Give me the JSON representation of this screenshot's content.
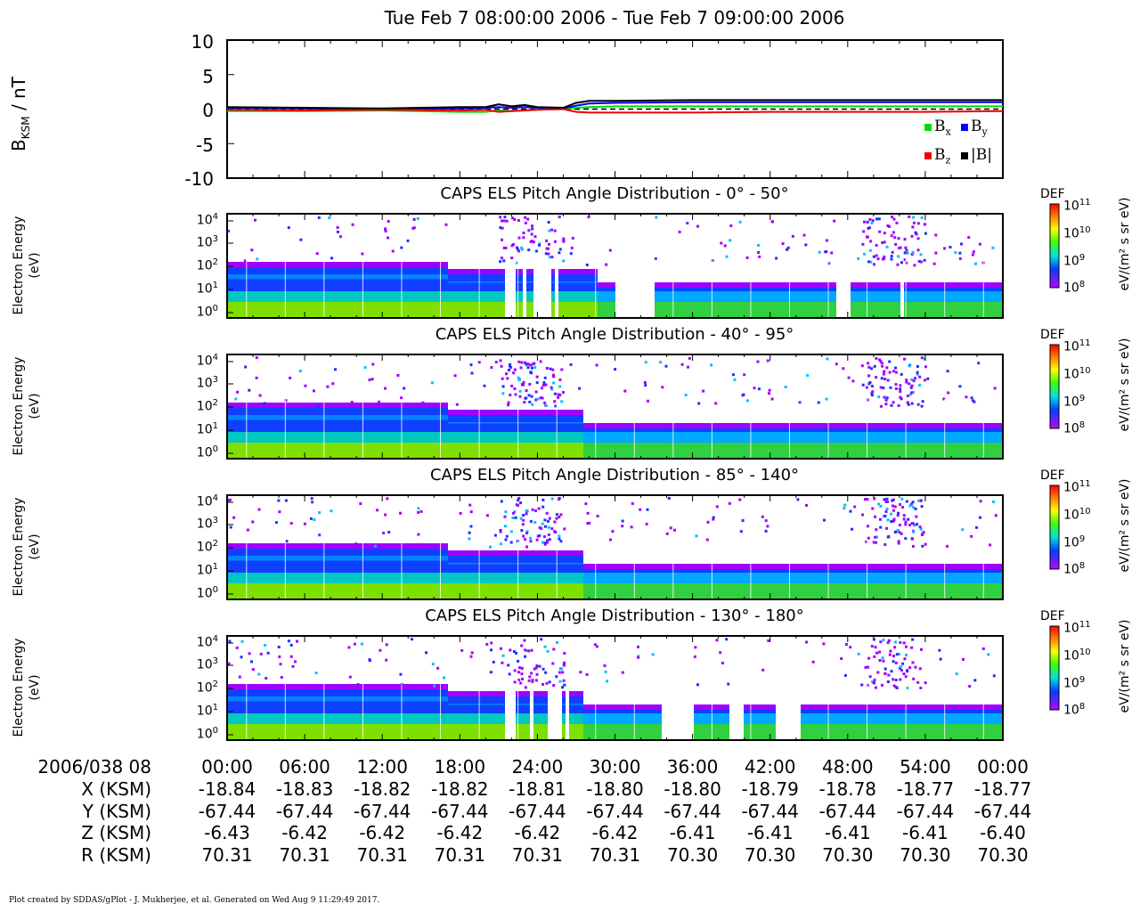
{
  "header": {
    "title": "Tue Feb  7 08:00:00 2006 - Tue Feb  7 09:00:00 2006"
  },
  "mag": {
    "ylabel_main": "B",
    "ylabel_sub": "KSM",
    "ylabel_unit": " / nT",
    "yticks": [
      "10",
      "5",
      "0",
      "-5",
      "-10"
    ],
    "legend": [
      {
        "base": "B",
        "sub": "x",
        "color": "#00dd00"
      },
      {
        "base": "B",
        "sub": "y",
        "color": "#0000ff"
      },
      {
        "base": "B",
        "sub": "z",
        "color": "#ee0000"
      },
      {
        "base": "|B|",
        "sub": "",
        "color": "#000000"
      }
    ]
  },
  "chart_data": {
    "type": "line",
    "title": "Tue Feb  7 08:00:00 2006 - Tue Feb  7 09:00:00 2006",
    "ylabel": "B KSM / nT",
    "ylim": [
      -10,
      10
    ],
    "x_minutes": [
      0,
      6,
      12,
      18,
      20,
      21,
      22,
      23,
      24,
      26,
      27,
      28,
      30,
      36,
      42,
      48,
      54,
      60
    ],
    "series": [
      {
        "name": "Bx",
        "color": "#00dd00",
        "values": [
          -0.3,
          -0.3,
          -0.2,
          -0.4,
          -0.4,
          -0.2,
          -0.3,
          -0.2,
          -0.1,
          0.0,
          0.2,
          0.3,
          0.4,
          0.4,
          0.4,
          0.4,
          0.4,
          0.4
        ]
      },
      {
        "name": "By",
        "color": "#0000ff",
        "values": [
          0.2,
          0.1,
          0.0,
          0.1,
          0.2,
          0.3,
          0.2,
          0.3,
          0.2,
          0.1,
          0.5,
          0.8,
          0.9,
          1.0,
          1.0,
          1.0,
          1.0,
          1.0
        ]
      },
      {
        "name": "Bz",
        "color": "#ee0000",
        "values": [
          -0.1,
          -0.2,
          -0.1,
          -0.2,
          -0.1,
          -0.4,
          -0.3,
          -0.2,
          -0.1,
          0.0,
          -0.4,
          -0.5,
          -0.5,
          -0.5,
          -0.4,
          -0.4,
          -0.4,
          -0.3
        ]
      },
      {
        "name": "|B|",
        "color": "#000000",
        "values": [
          0.3,
          0.2,
          0.1,
          0.3,
          0.3,
          0.7,
          0.4,
          0.6,
          0.3,
          0.2,
          0.9,
          1.2,
          1.2,
          1.3,
          1.3,
          1.3,
          1.3,
          1.3
        ]
      }
    ],
    "dashed_reference_y": 0
  },
  "spectrograms": [
    {
      "title": "CAPS ELS Pitch Angle Distribution - 0° - 50°",
      "gaps_minutes": [
        [
          21.3,
          22.3
        ],
        [
          22.7,
          23.0
        ],
        [
          23.6,
          25.0
        ],
        [
          25.3,
          25.5
        ],
        [
          30.0,
          32.8
        ],
        [
          47.0,
          48.1
        ],
        [
          52.0,
          52.3
        ]
      ]
    },
    {
      "title": "CAPS ELS Pitch Angle Distribution - 40° - 95°",
      "gaps_minutes": []
    },
    {
      "title": "CAPS ELS Pitch Angle Distribution - 85° - 140°",
      "gaps_minutes": []
    },
    {
      "title": "CAPS ELS Pitch Angle Distribution - 130° - 180°",
      "gaps_minutes": [
        [
          21.3,
          22.3
        ],
        [
          23.3,
          23.6
        ],
        [
          24.6,
          25.7
        ],
        [
          26.0,
          26.3
        ],
        [
          33.5,
          36.0
        ],
        [
          38.8,
          39.8
        ],
        [
          42.3,
          44.3
        ]
      ]
    }
  ],
  "energy_axis": {
    "ylabel_line1": "Electron Energy",
    "ylabel_line2": "(eV)",
    "yticks": [
      {
        "base": "10",
        "exp": "4"
      },
      {
        "base": "10",
        "exp": "3"
      },
      {
        "base": "10",
        "exp": "2"
      },
      {
        "base": "10",
        "exp": "1"
      },
      {
        "base": "10",
        "exp": "0"
      }
    ]
  },
  "colorbar": {
    "label": "DEF",
    "unit": "eV/(m² s sr eV)",
    "ticks": [
      {
        "base": "10",
        "exp": "11"
      },
      {
        "base": "10",
        "exp": "10"
      },
      {
        "base": "10",
        "exp": "9"
      },
      {
        "base": "10",
        "exp": "8"
      }
    ]
  },
  "ephemeris": {
    "time_label": "2006/038 08",
    "times": [
      "00:00",
      "06:00",
      "12:00",
      "18:00",
      "24:00",
      "30:00",
      "36:00",
      "42:00",
      "48:00",
      "54:00",
      "00:00"
    ],
    "rows": [
      {
        "label": "X (KSM)",
        "values": [
          "-18.84",
          "-18.83",
          "-18.82",
          "-18.82",
          "-18.81",
          "-18.80",
          "-18.80",
          "-18.79",
          "-18.78",
          "-18.77",
          "-18.77"
        ]
      },
      {
        "label": "Y (KSM)",
        "values": [
          "-67.44",
          "-67.44",
          "-67.44",
          "-67.44",
          "-67.44",
          "-67.44",
          "-67.44",
          "-67.44",
          "-67.44",
          "-67.44",
          "-67.44"
        ]
      },
      {
        "label": "Z (KSM)",
        "values": [
          "-6.43",
          "-6.42",
          "-6.42",
          "-6.42",
          "-6.42",
          "-6.42",
          "-6.41",
          "-6.41",
          "-6.41",
          "-6.41",
          "-6.40"
        ]
      },
      {
        "label": "R (KSM)",
        "values": [
          "70.31",
          "70.31",
          "70.31",
          "70.31",
          "70.31",
          "70.31",
          "70.30",
          "70.30",
          "70.30",
          "70.30",
          "70.30"
        ]
      }
    ]
  },
  "footer": {
    "text": "Plot created by SDDAS/gPlot - J. Mukherjee, et al.  Generated on Wed Aug  9 11:29:49 2017."
  }
}
